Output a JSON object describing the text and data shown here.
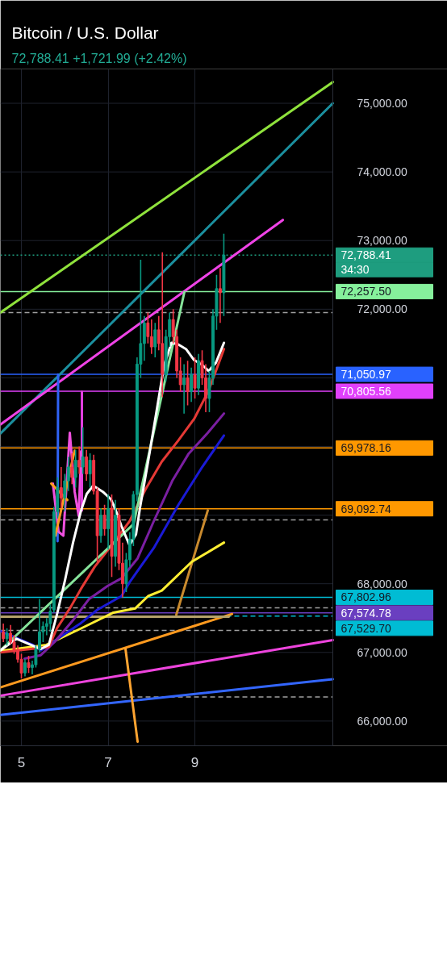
{
  "chart_data": {
    "type": "candlestick",
    "title": "Bitcoin / U.S. Dollar",
    "subtitle": "72,788.41 +1,721.99 (+2.42%)",
    "x": [
      4.583,
      4.667,
      4.75,
      4.833,
      4.917,
      5,
      5.083,
      5.167,
      5.25,
      5.333,
      5.417,
      5.5,
      5.583,
      5.667,
      5.75,
      5.833,
      5.917,
      6,
      6.083,
      6.167,
      6.25,
      6.333,
      6.417,
      6.5,
      6.583,
      6.667,
      6.75,
      6.833,
      6.917,
      7,
      7.083,
      7.167,
      7.25,
      7.333,
      7.417,
      7.5,
      7.583,
      7.667,
      7.75,
      7.833,
      7.917,
      8,
      8.083,
      8.167,
      8.25,
      8.333,
      8.417,
      8.5,
      8.583,
      8.667,
      8.75,
      8.833,
      8.917,
      9,
      9.083,
      9.167,
      9.25,
      9.333,
      9.417,
      9.5,
      9.583,
      9.667
    ],
    "ohlc": [
      [
        67300,
        67420,
        67150,
        67200
      ],
      [
        67200,
        67350,
        67100,
        67280
      ],
      [
        67280,
        67400,
        67120,
        67150
      ],
      [
        67150,
        67250,
        66980,
        67020
      ],
      [
        67020,
        67100,
        66850,
        66900
      ],
      [
        66900,
        66980,
        66620,
        66700
      ],
      [
        66700,
        66900,
        66650,
        66850
      ],
      [
        66850,
        66950,
        66700,
        66780
      ],
      [
        66780,
        66880,
        66680,
        66820
      ],
      [
        66820,
        67100,
        66780,
        67050
      ],
      [
        67050,
        67780,
        67000,
        67300
      ],
      [
        67300,
        67450,
        67150,
        67380
      ],
      [
        67380,
        67500,
        67250,
        67420
      ],
      [
        67420,
        67700,
        67300,
        67600
      ],
      [
        67620,
        69120,
        67580,
        69050
      ],
      [
        69050,
        69550,
        68950,
        69400
      ],
      [
        69400,
        69700,
        69100,
        69250
      ],
      [
        69250,
        69600,
        69050,
        69500
      ],
      [
        69500,
        69850,
        69350,
        69700
      ],
      [
        69700,
        69900,
        69450,
        69550
      ],
      [
        69550,
        69950,
        69400,
        69800
      ],
      [
        69800,
        70000,
        69600,
        69700
      ],
      [
        69700,
        70280,
        69600,
        69850
      ],
      [
        69850,
        69950,
        69500,
        69600
      ],
      [
        69600,
        69900,
        69400,
        69800
      ],
      [
        69800,
        69880,
        69300,
        69350
      ],
      [
        69350,
        69400,
        68320,
        68700
      ],
      [
        68700,
        69100,
        68600,
        69000
      ],
      [
        69000,
        69150,
        68700,
        68800
      ],
      [
        68800,
        69300,
        68500,
        69100
      ],
      [
        69100,
        69300,
        68100,
        68400
      ],
      [
        68400,
        69220,
        68250,
        69000
      ],
      [
        69000,
        69100,
        68200,
        68300
      ],
      [
        68300,
        68600,
        67800,
        68000
      ],
      [
        68000,
        68450,
        67880,
        68350
      ],
      [
        68350,
        68750,
        68250,
        68650
      ],
      [
        68650,
        69350,
        68550,
        69300
      ],
      [
        69300,
        71300,
        69200,
        71200
      ],
      [
        71200,
        72720,
        71000,
        71500
      ],
      [
        71500,
        71900,
        71250,
        71800
      ],
      [
        71800,
        71950,
        71500,
        71600
      ],
      [
        71600,
        71850,
        71350,
        71450
      ],
      [
        71450,
        71800,
        71300,
        71700
      ],
      [
        71700,
        71900,
        71400,
        71500
      ],
      [
        71500,
        72830,
        70720,
        71050
      ],
      [
        71050,
        71700,
        70950,
        71600
      ],
      [
        71600,
        71950,
        71450,
        71850
      ],
      [
        71850,
        72000,
        71500,
        71600
      ],
      [
        71600,
        71700,
        71000,
        71100
      ],
      [
        71100,
        71300,
        70800,
        70900
      ],
      [
        70900,
        71200,
        70480,
        71000
      ],
      [
        71000,
        71250,
        70600,
        70800
      ],
      [
        70800,
        71150,
        70650,
        71050
      ],
      [
        71050,
        71300,
        70700,
        70850
      ],
      [
        70850,
        71350,
        70750,
        71250
      ],
      [
        71250,
        71400,
        70900,
        71000
      ],
      [
        71000,
        71200,
        70500,
        70700
      ],
      [
        70700,
        71100,
        70500,
        71000
      ],
      [
        71000,
        72000,
        70900,
        71900
      ],
      [
        71900,
        72500,
        71700,
        72300
      ],
      [
        72300,
        72600,
        71800,
        72240
      ],
      [
        72240,
        73100,
        71900,
        72788.41
      ]
    ],
    "colors": [
      "#f23645",
      "#089981",
      "#f23645",
      "#f23645",
      "#f23645",
      "#f23645",
      "#089981",
      "#f23645",
      "#089981",
      "#089981",
      "#089981",
      "#089981",
      "#089981",
      "#089981",
      "#089981",
      "#089981",
      "#f23645",
      "#089981",
      "#089981",
      "#f23645",
      "#089981",
      "#f23645",
      "#089981",
      "#f23645",
      "#089981",
      "#f23645",
      "#f23645",
      "#089981",
      "#f23645",
      "#089981",
      "#f23645",
      "#089981",
      "#f23645",
      "#f23645",
      "#089981",
      "#089981",
      "#089981",
      "#089981",
      "#089981",
      "#089981",
      "#f23645",
      "#f23645",
      "#089981",
      "#f23645",
      "#f23645",
      "#089981",
      "#089981",
      "#f23645",
      "#f23645",
      "#f23645",
      "#089981",
      "#f23645",
      "#089981",
      "#f23645",
      "#089981",
      "#f23645",
      "#f23645",
      "#089981",
      "#089981",
      "#089981",
      "#f23645",
      "#089981"
    ],
    "series": [
      {
        "type": "line",
        "color": "#8fe23c",
        "x": [
          4.516,
          12.18
        ],
        "values": [
          71950,
          75310
        ]
      },
      {
        "type": "line",
        "color": "#1b8f9e",
        "x": [
          4.516,
          12.18
        ],
        "values": [
          70190,
          75000
        ]
      },
      {
        "type": "line",
        "color": "#ef43e6",
        "x": [
          4.516,
          11.028
        ],
        "values": [
          70320,
          73300
        ]
      },
      {
        "type": "line",
        "color": "#ee44dd",
        "x": [
          4.516,
          12.18
        ],
        "values": [
          66370,
          67180
        ]
      },
      {
        "type": "line",
        "color": "#3366ff",
        "x": [
          4.516,
          12.18
        ],
        "values": [
          66090,
          66610
        ]
      },
      {
        "type": "line",
        "color": "#ff9a1f",
        "x": [
          4.516,
          9.856
        ],
        "values": [
          66490,
          67560
        ]
      },
      {
        "type": "line",
        "color": "#ffa431",
        "x": [
          7.4,
          7.679
        ],
        "values": [
          67050,
          65700
        ]
      },
      {
        "type": "line",
        "color": "#c98a2e",
        "x": [
          8.572,
          9.298
        ],
        "values": [
          67550,
          69070
        ]
      },
      {
        "type": "line",
        "color": "#b5a26c",
        "x": [
          4.516,
          9.78
        ],
        "values": [
          67520,
          67520
        ]
      },
      {
        "type": "line",
        "color": "#2f63f5",
        "x": [
          5.847,
          5.834
        ],
        "values": [
          71050,
          68620
        ]
      },
      {
        "type": "line",
        "color": "#e23fe0",
        "x": [
          6.395,
          6.395
        ],
        "values": [
          70800,
          69070
        ]
      },
      {
        "type": "line",
        "color": "#f050e0",
        "x": [
          5.726,
          5.856,
          5.967,
          6.116,
          6.228,
          6.321,
          6.377
        ],
        "values": [
          69460,
          68760,
          68700,
          70200,
          69340,
          68990,
          69930
        ]
      },
      {
        "type": "line",
        "color": "#ff9a1f",
        "x": [
          5.688,
          6.06
        ],
        "values": [
          69460,
          69220
        ]
      },
      {
        "type": "line",
        "color": "#ff9a1f",
        "x": [
          5.781,
          6.228
        ],
        "values": [
          68700,
          69940
        ]
      },
      {
        "type": "line",
        "color": "#ffee33",
        "x": [
          4.516,
          5.577,
          6.377,
          7.121,
          7.623,
          7.921,
          8.237,
          8.926,
          9.67
        ],
        "values": [
          67020,
          67110,
          67350,
          67580,
          67640,
          67820,
          67900,
          68320,
          68600
        ]
      },
      {
        "type": "line",
        "color": "#1a1ad6",
        "x": [
          4.516,
          5.26,
          5.447,
          6.005,
          6.377,
          6.749,
          7.307,
          7.493,
          8.051,
          8.609,
          9.167,
          9.67
        ],
        "values": [
          67310,
          67110,
          67030,
          67270,
          67430,
          67620,
          67820,
          68020,
          68520,
          69140,
          69700,
          70160
        ]
      },
      {
        "type": "line",
        "color": "#7b1fa2",
        "x": [
          5.074,
          5.447,
          5.763,
          6.191,
          6.563,
          6.991,
          7.307,
          7.679,
          8.051,
          8.479,
          8.851,
          9.298,
          9.67
        ],
        "values": [
          66910,
          66960,
          67150,
          67470,
          67780,
          67970,
          68080,
          68370,
          68910,
          69500,
          69890,
          70200,
          70480
        ]
      },
      {
        "type": "line",
        "color": "#e53935",
        "x": [
          4.516,
          5.633,
          5.819,
          6.135,
          6.377,
          6.693,
          6.991,
          7.214,
          7.493,
          7.865,
          8.237,
          8.609,
          8.981,
          9.298,
          9.484,
          9.67
        ],
        "values": [
          67000,
          67080,
          67350,
          67660,
          67930,
          68250,
          68490,
          68670,
          68910,
          69380,
          69780,
          70080,
          70400,
          70790,
          71100,
          71420
        ]
      },
      {
        "type": "line",
        "color": "#86e39a",
        "x": [
          4.516,
          7.586,
          8.758
        ],
        "values": [
          67030,
          68870,
          72250
        ]
      },
      {
        "type": "line",
        "color": "#ffffff",
        "x": [
          4.516,
          4.888,
          5.447,
          5.633,
          5.819,
          6.005,
          6.191,
          6.377,
          6.507,
          6.656,
          6.879,
          7.065,
          7.177,
          7.307,
          7.493,
          7.642,
          7.735,
          7.921,
          8.107,
          8.293,
          8.46,
          8.609,
          8.795,
          8.981,
          9.167,
          9.316,
          9.484,
          9.67
        ],
        "values": [
          67030,
          67200,
          67050,
          67110,
          67550,
          68050,
          68600,
          69070,
          69310,
          69430,
          69340,
          69230,
          69070,
          68840,
          68560,
          68720,
          69110,
          69780,
          70480,
          71190,
          71510,
          71490,
          71420,
          71260,
          71190,
          71100,
          71220,
          71510
        ]
      }
    ],
    "ref_lines": [
      {
        "axis": "y",
        "value": 72788.41,
        "label": "72,788.41",
        "color": "#1e9d7f",
        "line_style": "dotted"
      },
      {
        "axis": "y",
        "value": 72257.5,
        "label": "72,257.50",
        "color": "#86f09c"
      },
      {
        "axis": "y",
        "value": 71050.97,
        "label": "71,050.97",
        "color": "#2962ff"
      },
      {
        "axis": "y",
        "value": 70805.56,
        "label": "70,805.56",
        "color": "#e040fb"
      },
      {
        "axis": "y",
        "value": 69978.16,
        "label": "69,978.16",
        "color": "#ff9800"
      },
      {
        "axis": "y",
        "value": 69092.74,
        "label": "69,092.74",
        "color": "#ff9800"
      },
      {
        "axis": "y",
        "value": 67802.96,
        "label": "67,802.96",
        "color": "#00bcd4"
      },
      {
        "axis": "y",
        "value": 67574.78,
        "label": "67,574.78",
        "color": "#6a3fc0"
      },
      {
        "axis": "y",
        "value": 67529.7,
        "label": "67,529.70",
        "color": "#00bcd4",
        "line_style": "dashed"
      },
      {
        "axis": "y",
        "value": 71950,
        "color": "#a0a0a0",
        "line_style": "dashed"
      },
      {
        "axis": "y",
        "value": 68930,
        "color": "#a0a0a0",
        "line_style": "dashed"
      },
      {
        "axis": "y",
        "value": 67650,
        "color": "#a0a0a0",
        "line_style": "dashed"
      },
      {
        "axis": "y",
        "value": 67320,
        "color": "#a0a0a0",
        "line_style": "dashed"
      },
      {
        "axis": "y",
        "value": 66350,
        "color": "#a0a0a0",
        "line_style": "dashed"
      }
    ],
    "annotations": [
      "34:30"
    ],
    "xlim": [
      4.516,
      12.18
    ],
    "xticks": [
      5,
      7,
      9
    ],
    "ylim": [
      65640,
      75500
    ],
    "yticks": [
      {
        "value": 66000,
        "label": "66,000.00"
      },
      {
        "value": 67000,
        "label": "67,000.00"
      },
      {
        "value": 68000,
        "label": "68,000.00"
      },
      {
        "value": 69000,
        "label": null
      },
      {
        "value": 70000,
        "label": null
      },
      {
        "value": 71000,
        "label": null
      },
      {
        "value": 72000,
        "label": "72,000.00"
      },
      {
        "value": 73000,
        "label": "73,000.00"
      },
      {
        "value": 74000,
        "label": "74,000.00"
      },
      {
        "value": 75000,
        "label": "75,000.00"
      }
    ],
    "grid": true
  }
}
